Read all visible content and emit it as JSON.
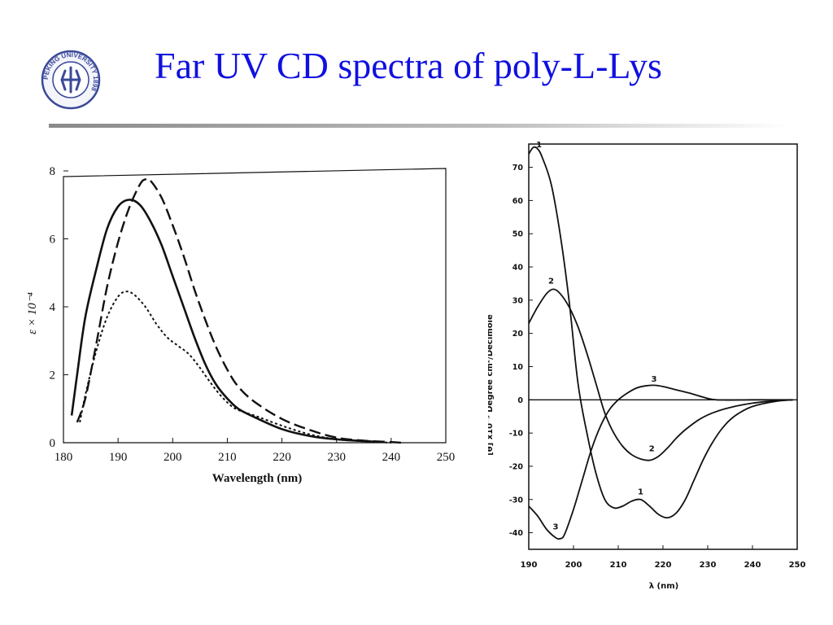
{
  "title": "Far UV CD spectra of poly-L-Lys",
  "colors": {
    "title": "#1010e0",
    "ink": "#111111",
    "rule": "#9a9a9a"
  },
  "logo": {
    "icon": "peking-university-seal-icon",
    "text": "PEKING UNIVERSITY 1898"
  },
  "chart_data": [
    {
      "type": "line",
      "xlabel": "Wavelength (nm)",
      "ylabel": "ε × 10⁻⁴",
      "xlim": [
        180,
        250
      ],
      "ylim": [
        0,
        8
      ],
      "x_ticks": [
        180,
        190,
        200,
        210,
        220,
        230,
        240,
        250
      ],
      "y_ticks": [
        0,
        2,
        4,
        6,
        8
      ],
      "grid": false,
      "legend": "none",
      "series": [
        {
          "style": "solid",
          "points": [
            [
              181.5,
              0.8
            ],
            [
              182.5,
              2.0
            ],
            [
              184,
              3.7
            ],
            [
              186,
              5.1
            ],
            [
              188,
              6.3
            ],
            [
              190,
              6.95
            ],
            [
              192,
              7.15
            ],
            [
              194,
              7.0
            ],
            [
              196,
              6.5
            ],
            [
              198,
              5.8
            ],
            [
              200,
              4.9
            ],
            [
              202,
              4.0
            ],
            [
              204,
              3.1
            ],
            [
              206,
              2.3
            ],
            [
              208,
              1.7
            ],
            [
              210,
              1.3
            ],
            [
              212,
              1.0
            ],
            [
              215,
              0.75
            ],
            [
              220,
              0.4
            ],
            [
              225,
              0.2
            ],
            [
              230,
              0.1
            ],
            [
              235,
              0.05
            ],
            [
              238,
              0.02
            ]
          ]
        },
        {
          "style": "dashed",
          "points": [
            [
              182.5,
              0.6
            ],
            [
              184,
              1.3
            ],
            [
              186,
              2.9
            ],
            [
              188,
              4.6
            ],
            [
              190,
              5.9
            ],
            [
              192,
              6.9
            ],
            [
              194,
              7.6
            ],
            [
              195,
              7.75
            ],
            [
              196,
              7.7
            ],
            [
              198,
              7.2
            ],
            [
              200,
              6.4
            ],
            [
              202,
              5.5
            ],
            [
              204,
              4.5
            ],
            [
              206,
              3.6
            ],
            [
              208,
              2.8
            ],
            [
              210,
              2.15
            ],
            [
              212,
              1.65
            ],
            [
              215,
              1.2
            ],
            [
              220,
              0.7
            ],
            [
              225,
              0.38
            ],
            [
              230,
              0.15
            ],
            [
              235,
              0.06
            ],
            [
              240,
              0.02
            ],
            [
              242,
              0.0
            ]
          ]
        },
        {
          "style": "dotted",
          "points": [
            [
              183,
              0.6
            ],
            [
              184,
              1.4
            ],
            [
              186,
              2.7
            ],
            [
              188,
              3.7
            ],
            [
              190,
              4.3
            ],
            [
              191.5,
              4.45
            ],
            [
              193,
              4.35
            ],
            [
              195,
              4.0
            ],
            [
              197,
              3.5
            ],
            [
              199,
              3.1
            ],
            [
              201,
              2.85
            ],
            [
              203,
              2.6
            ],
            [
              205,
              2.2
            ],
            [
              207,
              1.75
            ],
            [
              209,
              1.35
            ],
            [
              211,
              1.05
            ],
            [
              213,
              0.9
            ],
            [
              215,
              0.8
            ],
            [
              220,
              0.5
            ],
            [
              225,
              0.25
            ],
            [
              230,
              0.1
            ],
            [
              235,
              0.04
            ],
            [
              240,
              0.0
            ]
          ]
        }
      ]
    },
    {
      "type": "line",
      "xlabel": "λ (nm)",
      "ylabel": "[θ] x10⁻³ Degree cm²/Decimole",
      "xlim": [
        190,
        250
      ],
      "ylim": [
        -45,
        77
      ],
      "x_ticks": [
        190,
        200,
        210,
        220,
        230,
        240,
        250
      ],
      "y_ticks": [
        -40,
        -30,
        -20,
        -10,
        0,
        10,
        20,
        30,
        40,
        50,
        60,
        70
      ],
      "grid": false,
      "legend": "curve-number labels",
      "baseline": 0,
      "series": [
        {
          "name": "1",
          "label_at": [
            192.3,
            76
          ],
          "points": [
            [
              190,
              74
            ],
            [
              191,
              76
            ],
            [
              192,
              75.5
            ],
            [
              193,
              73
            ],
            [
              195,
              65
            ],
            [
              197,
              50
            ],
            [
              199,
              30
            ],
            [
              201,
              5
            ],
            [
              203,
              -10
            ],
            [
              205,
              -22
            ],
            [
              207,
              -30
            ],
            [
              209,
              -32.5
            ],
            [
              211,
              -32
            ],
            [
              213,
              -30.5
            ],
            [
              215,
              -30
            ],
            [
              217,
              -32
            ],
            [
              219,
              -34.5
            ],
            [
              221,
              -35.5
            ],
            [
              223,
              -34
            ],
            [
              225,
              -30
            ],
            [
              227,
              -24
            ],
            [
              229,
              -18
            ],
            [
              231,
              -13
            ],
            [
              233,
              -9
            ],
            [
              235,
              -6
            ],
            [
              237,
              -4
            ],
            [
              240,
              -2
            ],
            [
              245,
              -0.5
            ],
            [
              249,
              0
            ]
          ]
        },
        {
          "name": "2",
          "label_at": [
            195,
            35
          ],
          "points": [
            [
              190,
              23
            ],
            [
              192,
              28
            ],
            [
              194,
              32
            ],
            [
              195.5,
              33.3
            ],
            [
              197,
              32
            ],
            [
              199,
              28
            ],
            [
              201,
              22
            ],
            [
              203,
              14
            ],
            [
              205,
              5
            ],
            [
              207,
              -4
            ],
            [
              209,
              -10
            ],
            [
              211,
              -14
            ],
            [
              213,
              -16.5
            ],
            [
              215,
              -17.8
            ],
            [
              217,
              -18.2
            ],
            [
              219,
              -17
            ],
            [
              221,
              -14.5
            ],
            [
              223,
              -11.5
            ],
            [
              225,
              -9
            ],
            [
              228,
              -6
            ],
            [
              231,
              -4
            ],
            [
              235,
              -2.3
            ],
            [
              240,
              -1
            ],
            [
              245,
              -0.3
            ],
            [
              249,
              0
            ]
          ]
        },
        {
          "name": "3",
          "label_at": [
            218,
            5.5
          ],
          "points": [
            [
              190,
              -32
            ],
            [
              192,
              -35
            ],
            [
              194,
              -39
            ],
            [
              196,
              -41.5
            ],
            [
              197,
              -41.8
            ],
            [
              198,
              -40.5
            ],
            [
              200,
              -33
            ],
            [
              202,
              -24
            ],
            [
              204,
              -15
            ],
            [
              206,
              -8
            ],
            [
              208,
              -3
            ],
            [
              210,
              0
            ],
            [
              212,
              2
            ],
            [
              214,
              3.5
            ],
            [
              216,
              4.2
            ],
            [
              218,
              4.4
            ],
            [
              220,
              4
            ],
            [
              223,
              3
            ],
            [
              226,
              2
            ],
            [
              229,
              0.8
            ],
            [
              232,
              0
            ],
            [
              240,
              0
            ],
            [
              249,
              0
            ]
          ]
        }
      ],
      "point_labels": [
        {
          "text": "1",
          "x": 192.3,
          "y": 76
        },
        {
          "text": "2",
          "x": 195,
          "y": 35
        },
        {
          "text": "3",
          "x": 218,
          "y": 5.5
        },
        {
          "text": "2",
          "x": 217.5,
          "y": -15.5
        },
        {
          "text": "1",
          "x": 215,
          "y": -28.5
        },
        {
          "text": "3",
          "x": 196,
          "y": -39
        }
      ]
    }
  ]
}
